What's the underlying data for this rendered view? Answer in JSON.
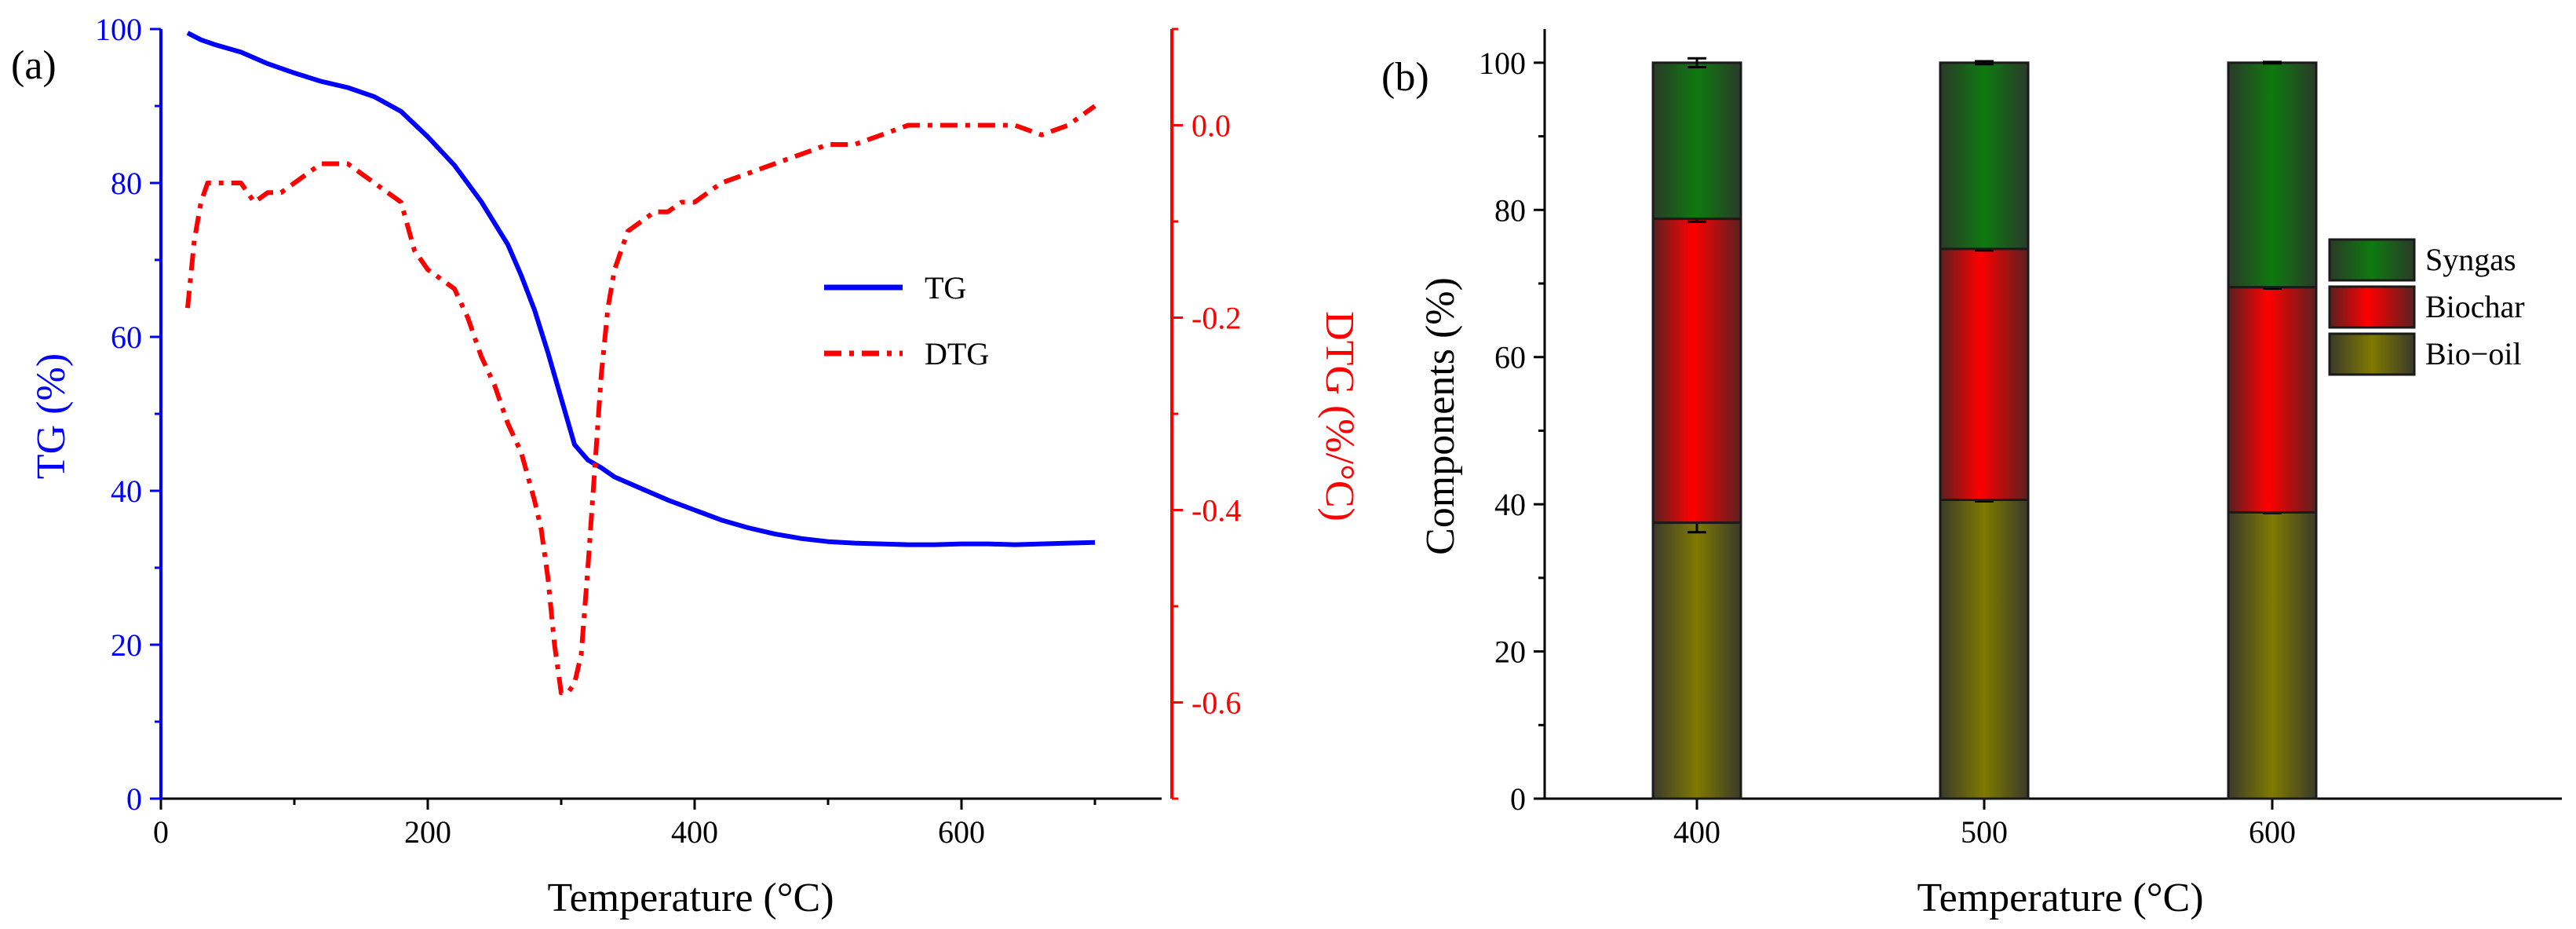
{
  "colors": {
    "tg": "#0000ff",
    "dtg": "#ff0000",
    "axis": "#000000",
    "syngas": "#0e7a0e",
    "biochar": "#ff0000",
    "biooil": "#807a00",
    "bar_edge": "#1a1a1a"
  },
  "chart_data": [
    {
      "panel_label": "(a)",
      "type": "line",
      "xlabel": "Temperature (°C)",
      "ylabel_left": "TG (%)",
      "ylabel_right": "DTG (%/°C)",
      "xlim": [
        0,
        750
      ],
      "ylim_left": [
        0,
        100
      ],
      "ylim_right": [
        -0.7,
        0.1
      ],
      "x_ticks": [
        0,
        200,
        400,
        600
      ],
      "y_left_ticks": [
        0,
        20,
        40,
        60,
        80,
        100
      ],
      "y_right_ticks": [
        "-0.6",
        "-0.4",
        "-0.2",
        "0.0"
      ],
      "grid": false,
      "legend_position": "right",
      "series": [
        {
          "name": "TG",
          "axis": "left",
          "style": "solid",
          "x": [
            20,
            30,
            40,
            60,
            80,
            100,
            120,
            140,
            160,
            180,
            200,
            220,
            240,
            260,
            270,
            280,
            290,
            300,
            310,
            320,
            330,
            340,
            360,
            380,
            400,
            420,
            440,
            460,
            480,
            500,
            520,
            540,
            560,
            580,
            600,
            620,
            640,
            660,
            680,
            700
          ],
          "values": [
            99.5,
            98.6,
            98.0,
            97.0,
            95.5,
            94.3,
            93.2,
            92.4,
            91.2,
            89.3,
            86.0,
            82.3,
            77.6,
            72.0,
            68.0,
            63.5,
            58.0,
            52.0,
            46.0,
            44.0,
            43.0,
            41.8,
            40.3,
            38.8,
            37.5,
            36.2,
            35.2,
            34.4,
            33.8,
            33.4,
            33.2,
            33.1,
            33.0,
            33.0,
            33.1,
            33.1,
            33.0,
            33.1,
            33.2,
            33.3
          ]
        },
        {
          "name": "DTG",
          "axis": "right",
          "style": "dash-dot",
          "x": [
            20,
            25,
            30,
            35,
            40,
            50,
            60,
            70,
            80,
            90,
            100,
            110,
            120,
            130,
            140,
            150,
            160,
            170,
            180,
            190,
            200,
            210,
            220,
            230,
            240,
            250,
            260,
            270,
            280,
            285,
            290,
            295,
            300,
            305,
            310,
            315,
            320,
            325,
            330,
            335,
            340,
            350,
            360,
            370,
            380,
            390,
            400,
            420,
            440,
            460,
            480,
            500,
            520,
            540,
            560,
            580,
            600,
            620,
            640,
            660,
            680,
            690,
            700
          ],
          "values": [
            -0.19,
            -0.12,
            -0.08,
            -0.06,
            -0.06,
            -0.06,
            -0.06,
            -0.08,
            -0.07,
            -0.07,
            -0.06,
            -0.05,
            -0.04,
            -0.04,
            -0.04,
            -0.05,
            -0.06,
            -0.07,
            -0.08,
            -0.13,
            -0.15,
            -0.16,
            -0.17,
            -0.2,
            -0.24,
            -0.27,
            -0.31,
            -0.34,
            -0.39,
            -0.42,
            -0.47,
            -0.54,
            -0.59,
            -0.59,
            -0.58,
            -0.55,
            -0.46,
            -0.36,
            -0.26,
            -0.19,
            -0.15,
            -0.11,
            -0.1,
            -0.09,
            -0.09,
            -0.08,
            -0.08,
            -0.06,
            -0.05,
            -0.04,
            -0.03,
            -0.02,
            -0.02,
            -0.01,
            0.0,
            0.0,
            0.0,
            0.0,
            0.0,
            -0.01,
            0.0,
            0.01,
            0.02
          ]
        }
      ]
    },
    {
      "panel_label": "(b)",
      "type": "bar",
      "stacked": true,
      "xlabel": "Temperature (°C)",
      "ylabel": "Components (%)",
      "categories": [
        "400",
        "500",
        "600"
      ],
      "ylim": [
        0,
        100
      ],
      "y_ticks": [
        0,
        20,
        40,
        60,
        80,
        100
      ],
      "grid": false,
      "legend_position": "right",
      "series": [
        {
          "name": "Bio−oil",
          "values": [
            37.5,
            40.6,
            38.9
          ],
          "error": [
            1.3,
            0.2,
            0.1
          ]
        },
        {
          "name": "Biochar",
          "values": [
            41.3,
            34.1,
            30.6
          ],
          "error": [
            0.4,
            0.2,
            0.2
          ]
        },
        {
          "name": "Syngas",
          "values": [
            21.2,
            25.3,
            30.5
          ],
          "error": [
            0.6,
            0.2,
            0.1
          ]
        }
      ],
      "legend_order": [
        "Syngas",
        "Biochar",
        "Bio−oil"
      ]
    }
  ]
}
